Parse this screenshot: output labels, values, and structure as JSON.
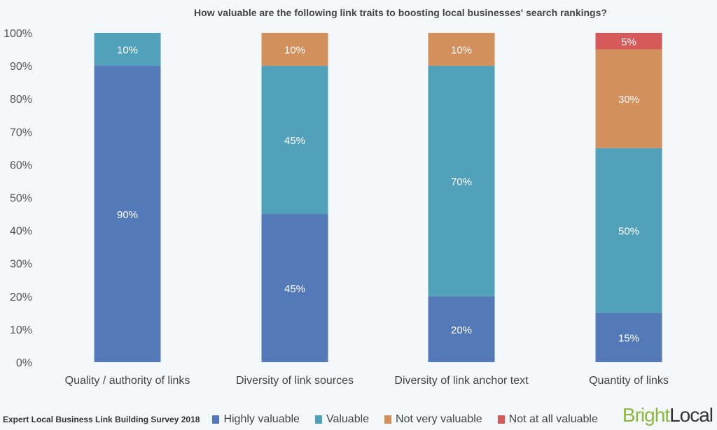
{
  "chart_data": {
    "type": "bar",
    "stacked": true,
    "title": "How valuable are the following link traits to boosting local businesses' search rankings?",
    "xlabel": "",
    "ylabel": "",
    "ylim": [
      0,
      100
    ],
    "yticks": [
      "0%",
      "10%",
      "20%",
      "30%",
      "40%",
      "50%",
      "60%",
      "70%",
      "80%",
      "90%",
      "100%"
    ],
    "grid": false,
    "legend_position": "bottom",
    "categories": [
      "Quality / authority of links",
      "Diversity of link sources",
      "Diversity of link anchor text",
      "Quantity of links"
    ],
    "series": [
      {
        "name": "Highly valuable",
        "color": "#5479b8",
        "values": [
          90,
          45,
          20,
          15
        ]
      },
      {
        "name": "Valuable",
        "color": "#52a1ba",
        "values": [
          10,
          45,
          70,
          50
        ]
      },
      {
        "name": "Not very valuable",
        "color": "#d38f5c",
        "values": [
          0,
          10,
          10,
          30
        ]
      },
      {
        "name": "Not at all valuable",
        "color": "#d75a5a",
        "values": [
          0,
          0,
          0,
          5
        ]
      }
    ]
  },
  "source": "Expert Local Business Link Building Survey 2018",
  "logo": {
    "part1": "Bright",
    "part2": "Local"
  }
}
